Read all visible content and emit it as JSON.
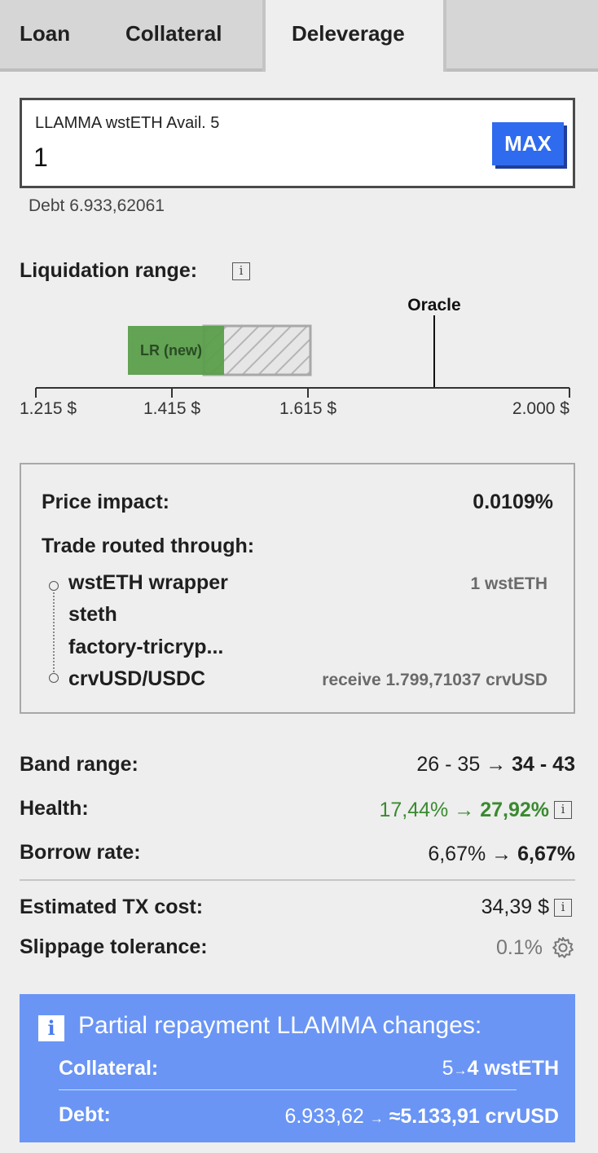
{
  "tabs": [
    {
      "label": "Loan",
      "active": false
    },
    {
      "label": "Collateral",
      "active": false
    },
    {
      "label": "Deleverage",
      "active": true
    }
  ],
  "input": {
    "label": "LLAMMA wstETH Avail. 5",
    "value": "1",
    "max_label": "MAX"
  },
  "debt_text": "Debt 6.933,62061",
  "liquidation": {
    "title": "Liquidation range:",
    "oracle_label": "Oracle",
    "new_range_label": "LR (new)",
    "ticks": [
      "1.215 $",
      "1.415 $",
      "1.615 $",
      "2.000 $"
    ]
  },
  "trade": {
    "price_impact_label": "Price impact:",
    "price_impact_value": "0.0109%",
    "routed_label": "Trade routed through:",
    "route": [
      {
        "name": "wstETH wrapper",
        "note": "1 wstETH"
      },
      {
        "name": "steth",
        "note": ""
      },
      {
        "name": "factory-tricryp...",
        "note": ""
      },
      {
        "name": "crvUSD/USDC",
        "note": "receive 1.799,71037 crvUSD"
      }
    ]
  },
  "details": {
    "band_range": {
      "label": "Band range:",
      "from": "26 - 35",
      "arrow": "→",
      "to": "34 - 43"
    },
    "health": {
      "label": "Health:",
      "from": "17,44%",
      "arrow": "→",
      "to": "27,92%"
    },
    "borrow_rate": {
      "label": "Borrow rate:",
      "from": "6,67%",
      "arrow": "→",
      "to": "6,67%"
    },
    "tx_cost": {
      "label": "Estimated TX cost:",
      "value": "34,39 $"
    },
    "slippage": {
      "label": "Slippage tolerance:",
      "value": "0.1%"
    }
  },
  "alert": {
    "icon": "i",
    "title": "Partial repayment LLAMMA changes:",
    "collateral_label": "Collateral:",
    "collateral_from": "5",
    "collateral_arrow": "→",
    "collateral_to": "4 wstETH",
    "debt_label": "Debt:",
    "debt_from": "6.933,62",
    "debt_arrow": "→",
    "debt_to": "≈5.133,91 crvUSD"
  },
  "colors": {
    "accent": "#2f6bef",
    "alert_bg": "#6a95f5",
    "health_green": "#3a8a2f",
    "range_green": "#5a9e4b"
  }
}
